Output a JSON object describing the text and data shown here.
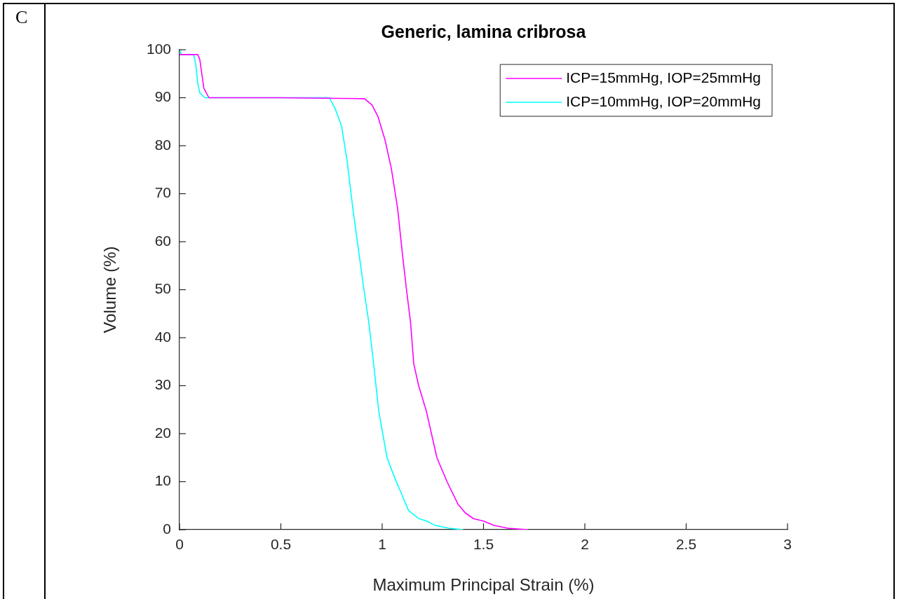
{
  "chart_data": {
    "type": "line",
    "title": "Generic, lamina cribrosa",
    "xlabel": "Maximum Principal Strain (%)",
    "ylabel": "Volume (%)",
    "annotations": [
      "C"
    ],
    "xlim": [
      0,
      3
    ],
    "xticks": [
      0,
      0.5,
      1,
      1.5,
      2,
      2.5,
      3
    ],
    "ylim": [
      0,
      100
    ],
    "yticks": [
      0,
      10,
      20,
      30,
      40,
      50,
      60,
      70,
      80,
      90,
      100
    ],
    "grid": false,
    "legend": "top right",
    "marker": "none",
    "line_style": "solid",
    "series": [
      {
        "name": "ICP=15mmHg, IOP=25mmHg",
        "color": "#ff00ff",
        "x": [
          0,
          0.09,
          0.1,
          0.11,
          0.12,
          0.145,
          0.5,
          0.913,
          0.95,
          0.98,
          1.014,
          1.045,
          1.076,
          1.1,
          1.12,
          1.14,
          1.156,
          1.18,
          1.218,
          1.27,
          1.32,
          1.374,
          1.41,
          1.45,
          1.5,
          1.55,
          1.62,
          1.72
        ],
        "values": [
          99,
          99,
          98,
          95,
          92,
          90,
          90,
          89.8,
          88.5,
          86,
          81.2,
          75.3,
          67,
          57.4,
          50,
          43.2,
          34.5,
          30,
          24.7,
          15,
          10,
          5.3,
          3.5,
          2.3,
          1.8,
          0.9,
          0.3,
          0
        ]
      },
      {
        "name": "ICP=10mmHg, IOP=20mmHg",
        "color": "#00ffff",
        "x": [
          0,
          0.01,
          0.07,
          0.08,
          0.09,
          0.1,
          0.125,
          0.74,
          0.77,
          0.8,
          0.827,
          0.855,
          0.886,
          0.91,
          0.934,
          0.958,
          0.983,
          1.024,
          1.06,
          1.093,
          1.13,
          1.18,
          1.22,
          1.26,
          1.33,
          1.4
        ],
        "values": [
          100,
          99,
          99,
          97,
          93,
          91,
          90,
          90,
          87.5,
          84,
          76.8,
          67,
          57.4,
          50,
          43.2,
          34.5,
          24.7,
          15,
          11,
          7.7,
          4,
          2.3,
          1.8,
          0.9,
          0.3,
          0
        ]
      }
    ]
  }
}
